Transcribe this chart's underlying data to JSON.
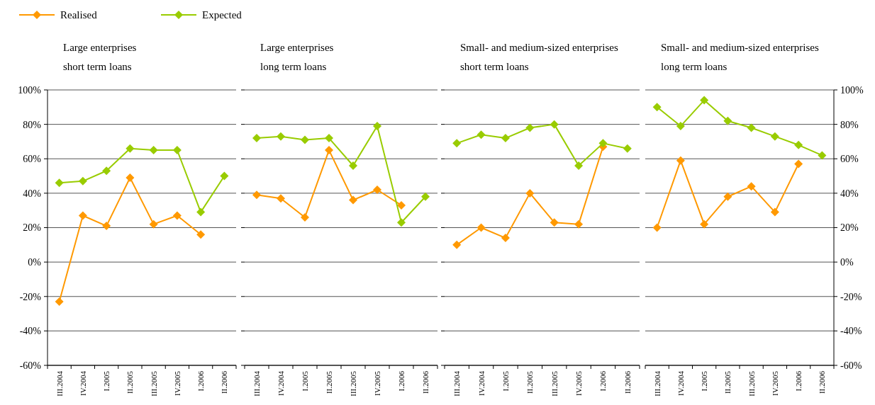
{
  "chart_data": [
    {
      "type": "line",
      "title": "Large enterprises\nshort term loans",
      "categories": [
        "III.2004",
        "IV.2004",
        "I.2005",
        "II.2005",
        "III.2005",
        "IV.2005",
        "I.2006",
        "II.2006"
      ],
      "ylim": [
        -60,
        100
      ],
      "yticks": [
        {
          "value": -60,
          "label": "-60%"
        },
        {
          "value": -40,
          "label": "-40%"
        },
        {
          "value": -20,
          "label": "-20%"
        },
        {
          "value": 0,
          "label": "0%"
        },
        {
          "value": 20,
          "label": "20%"
        },
        {
          "value": 40,
          "label": "40%"
        },
        {
          "value": 60,
          "label": "60%"
        },
        {
          "value": 80,
          "label": "80%"
        },
        {
          "value": 100,
          "label": "100%"
        }
      ],
      "grid": "y",
      "legend": "top left",
      "marker": "diamond",
      "series": [
        {
          "name": "Realised",
          "color": "#ff9900",
          "values": [
            -23,
            27,
            21,
            49,
            22,
            27,
            16,
            null
          ]
        },
        {
          "name": "Expected",
          "color": "#99cc00",
          "values": [
            46,
            47,
            53,
            66,
            65,
            65,
            29,
            50
          ]
        }
      ]
    },
    {
      "type": "line",
      "title": "Large enterprises\nlong term loans",
      "categories": [
        "III.2004",
        "IV.2004",
        "I.2005",
        "II.2005",
        "III.2005",
        "IV.2005",
        "I.2006",
        "II.2006"
      ],
      "ylim": [
        -60,
        100
      ],
      "yticks": [
        {
          "value": -60,
          "label": null
        },
        {
          "value": -40,
          "label": null
        },
        {
          "value": -20,
          "label": null
        },
        {
          "value": 0,
          "label": null
        },
        {
          "value": 20,
          "label": null
        },
        {
          "value": 40,
          "label": null
        },
        {
          "value": 60,
          "label": null
        },
        {
          "value": 80,
          "label": null
        },
        {
          "value": 100,
          "label": null
        }
      ],
      "tick_labels": "x",
      "grid": "y",
      "marker": "diamond",
      "series": [
        {
          "color": "#ff9900",
          "values": [
            39,
            37,
            26,
            65,
            36,
            42,
            33,
            null
          ]
        },
        {
          "color": "#99cc00",
          "values": [
            72,
            73,
            71,
            72,
            56,
            79,
            23,
            38
          ]
        }
      ]
    },
    {
      "type": "line",
      "title": "Small- and medium-sized enterprises\nshort term loans",
      "categories": [
        "III.2004",
        "IV.2004",
        "I.2005",
        "II.2005",
        "III.2005",
        "IV.2005",
        "I.2006",
        "II.2006"
      ],
      "ylim": [
        -60,
        100
      ],
      "yticks": [
        {
          "value": -60,
          "label": null
        },
        {
          "value": -40,
          "label": null
        },
        {
          "value": -20,
          "label": null
        },
        {
          "value": 0,
          "label": null
        },
        {
          "value": 20,
          "label": null
        },
        {
          "value": 40,
          "label": null
        },
        {
          "value": 60,
          "label": null
        },
        {
          "value": 80,
          "label": null
        },
        {
          "value": 100,
          "label": null
        }
      ],
      "tick_labels": "x",
      "grid": "y",
      "marker": "diamond",
      "series": [
        {
          "color": "#ff9900",
          "values": [
            10,
            20,
            14,
            40,
            23,
            22,
            67,
            null
          ]
        },
        {
          "color": "#99cc00",
          "values": [
            69,
            74,
            72,
            78,
            80,
            56,
            69,
            66
          ]
        }
      ]
    },
    {
      "type": "line",
      "title": "Small- and medium-sized enterprises\nlong term loans",
      "categories": [
        "III.2004",
        "IV.2004",
        "I.2005",
        "II.2005",
        "III.2005",
        "IV.2005",
        "I.2006",
        "II.2006"
      ],
      "ylim": [
        -60,
        100
      ],
      "yticks": [
        {
          "value": -60,
          "label": "-60%"
        },
        {
          "value": -40,
          "label": "-40%"
        },
        {
          "value": -20,
          "label": "-20%"
        },
        {
          "value": 0,
          "label": "0%"
        },
        {
          "value": 20,
          "label": "20%"
        },
        {
          "value": 40,
          "label": "40%"
        },
        {
          "value": 60,
          "label": "60%"
        },
        {
          "value": 80,
          "label": "80%"
        },
        {
          "value": 100,
          "label": "100%"
        }
      ],
      "grid": "y",
      "marker": "diamond",
      "series": [
        {
          "color": "#ff9900",
          "values": [
            20,
            59,
            22,
            38,
            44,
            29,
            57,
            null
          ]
        },
        {
          "color": "#99cc00",
          "values": [
            90,
            79,
            94,
            82,
            78,
            73,
            68,
            62
          ]
        }
      ]
    }
  ]
}
